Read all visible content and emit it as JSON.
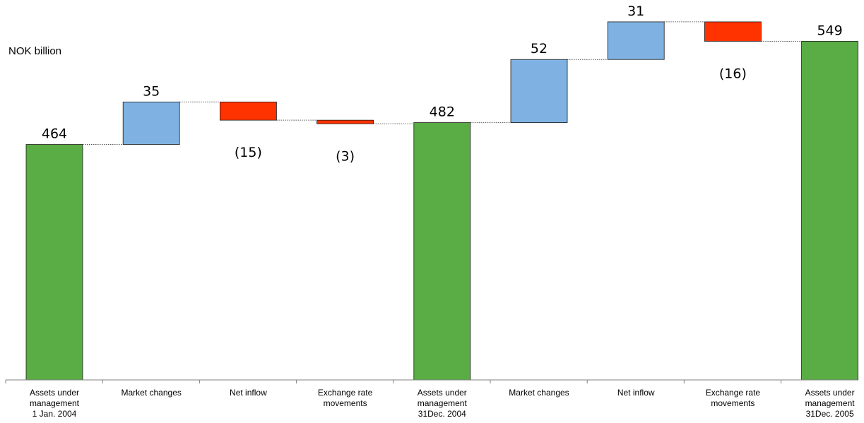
{
  "unit_label": "NOK billion",
  "colors": {
    "total": "#5aac44",
    "increase": "#7fb2e3",
    "decrease": "#ff3300",
    "connector": "#555555",
    "axis": "#808080"
  },
  "chart_data": {
    "type": "bar",
    "subtype": "waterfall",
    "ylabel": "NOK billion",
    "ylim": [
      270,
      551
    ],
    "categories": [
      [
        "Assets under",
        "management",
        "1 Jan. 2004"
      ],
      [
        "Market changes"
      ],
      [
        "Net inflow"
      ],
      [
        "Exchange rate",
        "movements"
      ],
      [
        "Assets under",
        "management",
        "31Dec. 2004"
      ],
      [
        "Market changes"
      ],
      [
        "Net inflow"
      ],
      [
        "Exchange rate",
        "movements"
      ],
      [
        "Assets under",
        "management",
        "31Dec. 2005"
      ]
    ],
    "steps": [
      {
        "kind": "total",
        "value": 464,
        "label": "464"
      },
      {
        "kind": "increase",
        "value": 35,
        "label": "35"
      },
      {
        "kind": "decrease",
        "value": -15,
        "label": "(15)"
      },
      {
        "kind": "decrease",
        "value": -3,
        "label": "(3)"
      },
      {
        "kind": "total",
        "value": 482,
        "label": "482"
      },
      {
        "kind": "increase",
        "value": 52,
        "label": "52"
      },
      {
        "kind": "increase",
        "value": 31,
        "label": "31"
      },
      {
        "kind": "decrease",
        "value": -16,
        "label": "(16)"
      },
      {
        "kind": "total",
        "value": 549,
        "label": "549"
      }
    ],
    "legend": "none",
    "grid": false
  }
}
